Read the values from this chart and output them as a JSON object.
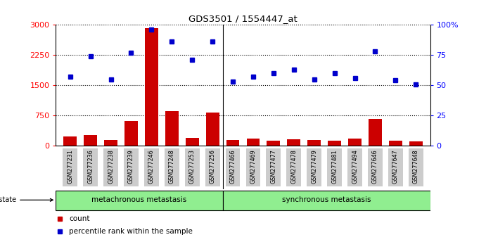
{
  "title": "GDS3501 / 1554447_at",
  "samples": [
    "GSM277231",
    "GSM277236",
    "GSM277238",
    "GSM277239",
    "GSM277246",
    "GSM277248",
    "GSM277253",
    "GSM277256",
    "GSM277466",
    "GSM277469",
    "GSM277477",
    "GSM277478",
    "GSM277479",
    "GSM277481",
    "GSM277494",
    "GSM277646",
    "GSM277647",
    "GSM277648"
  ],
  "counts": [
    220,
    270,
    150,
    620,
    2920,
    850,
    200,
    820,
    150,
    170,
    120,
    160,
    140,
    120,
    170,
    660,
    130,
    100
  ],
  "percentile": [
    57,
    74,
    55,
    77,
    96,
    86,
    71,
    86,
    53,
    57,
    60,
    63,
    55,
    60,
    56,
    78,
    54,
    51
  ],
  "group1_count": 8,
  "group2_count": 10,
  "group1_label": "metachronous metastasis",
  "group2_label": "synchronous metastasis",
  "bar_color": "#cc0000",
  "dot_color": "#0000cc",
  "ylim_left": [
    0,
    3000
  ],
  "ylim_right": [
    0,
    100
  ],
  "yticks_left": [
    0,
    750,
    1500,
    2250,
    3000
  ],
  "yticks_right": [
    0,
    25,
    50,
    75,
    100
  ],
  "background_color": "#ffffff",
  "group_bg_color": "#90ee90",
  "tick_bg_color": "#cccccc"
}
